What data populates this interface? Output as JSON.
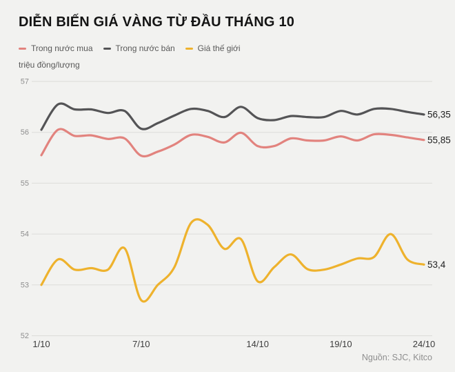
{
  "title": "DIỄN BIẾN GIÁ VÀNG TỪ ĐẦU THÁNG 10",
  "source": "Nguồn: SJC, Kitco",
  "colors": {
    "background": "#f2f2f0",
    "gridline": "#dcdcd9",
    "y_tick_text": "#8e8e8e",
    "x_tick_text": "#3c3c3c",
    "end_label_text": "#1f1f1f",
    "buy_line": "#e2837e",
    "sell_line": "#545456",
    "world_line": "#eeb22d"
  },
  "legend": {
    "items": [
      {
        "label": "Trong nước mua",
        "color": "#e2837e"
      },
      {
        "label": "Trong nước bán",
        "color": "#545456"
      },
      {
        "label": "Giá thế giới",
        "color": "#eeb22d"
      }
    ]
  },
  "chart_data": {
    "type": "line",
    "title": "DIỄN BIẾN GIÁ VÀNG TỪ ĐẦU THÁNG 10",
    "xlabel": "",
    "ylabel": "triệu đồng/lượng",
    "ylim": [
      52,
      57
    ],
    "y_ticks": [
      57,
      56,
      55,
      54,
      53,
      52
    ],
    "grid": "horizontal",
    "legend_position": "top",
    "x": [
      1,
      2,
      3,
      4,
      5,
      6,
      7,
      8,
      9,
      10,
      11,
      12,
      13,
      14,
      15,
      16,
      17,
      18,
      19,
      20,
      21,
      22,
      23,
      24
    ],
    "x_tick_labels": [
      {
        "day": 1,
        "label": "1/10"
      },
      {
        "day": 7,
        "label": "7/10"
      },
      {
        "day": 14,
        "label": "14/10"
      },
      {
        "day": 19,
        "label": "19/10"
      },
      {
        "day": 24,
        "label": "24/10"
      }
    ],
    "series": [
      {
        "name": "Trong nước mua",
        "color": "#e2837e",
        "end_label": "55,85",
        "values": [
          55.55,
          56.05,
          55.93,
          55.94,
          55.87,
          55.88,
          55.54,
          55.62,
          55.76,
          55.95,
          55.91,
          55.8,
          55.99,
          55.73,
          55.73,
          55.88,
          55.84,
          55.84,
          55.92,
          55.84,
          55.96,
          55.95,
          55.9,
          55.85
        ]
      },
      {
        "name": "Trong nước bán",
        "color": "#545456",
        "end_label": "56,35",
        "values": [
          56.05,
          56.55,
          56.45,
          56.45,
          56.38,
          56.42,
          56.07,
          56.18,
          56.33,
          56.46,
          56.42,
          56.3,
          56.5,
          56.28,
          56.24,
          56.32,
          56.3,
          56.3,
          56.42,
          56.35,
          56.46,
          56.46,
          56.4,
          56.35
        ]
      },
      {
        "name": "Giá thế giới",
        "color": "#eeb22d",
        "end_label": "53,4",
        "values": [
          53.0,
          53.5,
          53.3,
          53.33,
          53.3,
          53.72,
          52.7,
          53.0,
          53.35,
          54.22,
          54.18,
          53.71,
          53.9,
          53.07,
          53.35,
          53.6,
          53.31,
          53.3,
          53.4,
          53.52,
          53.55,
          54.0,
          53.5,
          53.4
        ]
      }
    ]
  }
}
